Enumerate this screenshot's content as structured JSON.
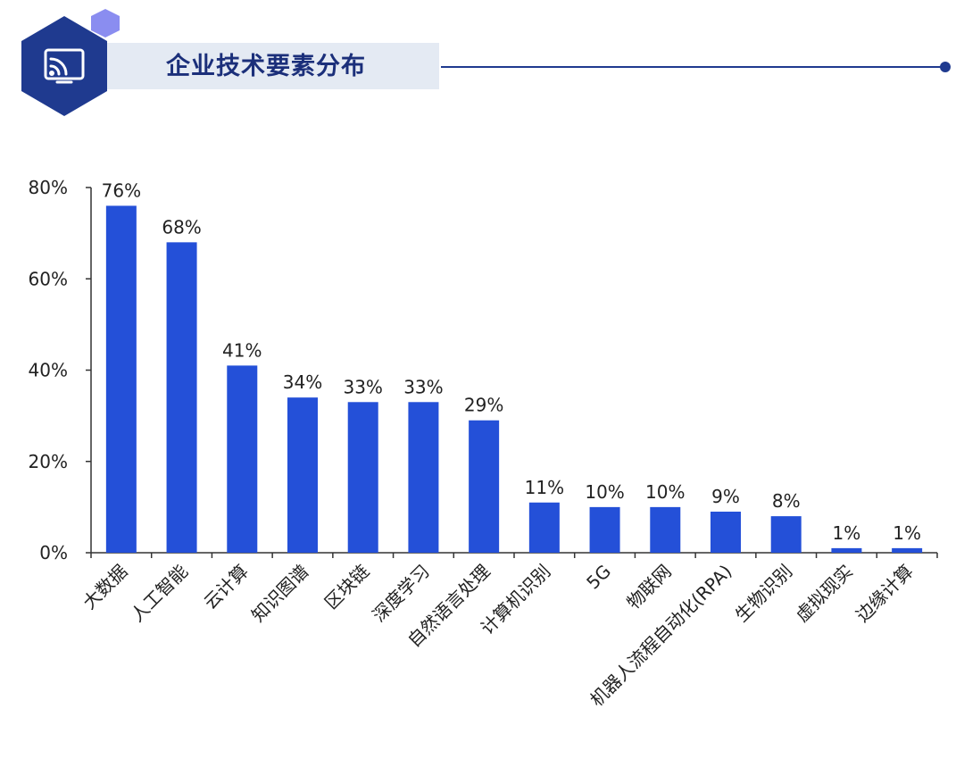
{
  "header": {
    "title": "企业技术要素分布",
    "icon": "monitor-signal-icon",
    "colors": {
      "hexagon": "#1f3a8f",
      "accent_hexagon": "#8a8df0",
      "band": "#e4eaf3",
      "line": "#1f3a8f"
    }
  },
  "chart_data": {
    "type": "bar",
    "categories": [
      "大数据",
      "人工智能",
      "云计算",
      "知识图谱",
      "区块链",
      "深度学习",
      "自然语言处理",
      "计算机识别",
      "5G",
      "物联网",
      "机器人流程自动化(RPA)",
      "生物识别",
      "虚拟现实",
      "边缘计算"
    ],
    "values": [
      76,
      68,
      41,
      34,
      33,
      33,
      29,
      11,
      10,
      10,
      9,
      8,
      1,
      1
    ],
    "value_labels": [
      "76%",
      "68%",
      "41%",
      "34%",
      "33%",
      "33%",
      "29%",
      "11%",
      "10%",
      "10%",
      "9%",
      "8%",
      "1%",
      "1%"
    ],
    "y_ticks": [
      0,
      20,
      40,
      60,
      80
    ],
    "y_tick_labels": [
      "0%",
      "20%",
      "40%",
      "60%",
      "80%"
    ],
    "ylim": [
      0,
      80
    ],
    "bar_color": "#2450d8",
    "grid": false
  }
}
